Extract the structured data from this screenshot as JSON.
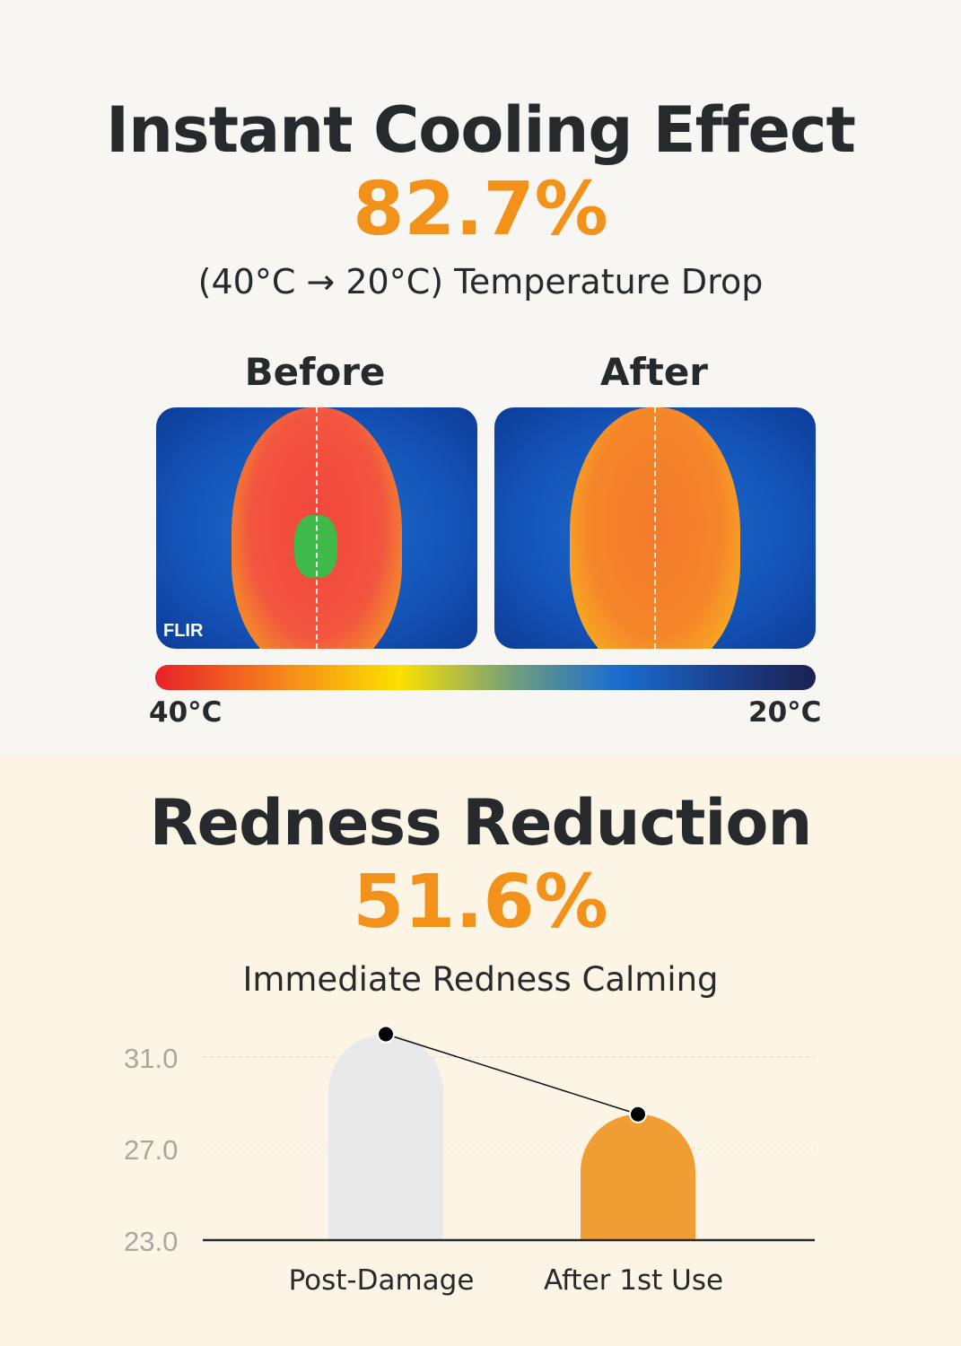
{
  "cooling": {
    "title": "Instant Cooling Effect",
    "stat": "82.7%",
    "subtitle": "(40°C → 20°C) Temperature Drop",
    "before_label": "Before",
    "after_label": "After",
    "brand_watermark": "FLIR",
    "scale_min_label": "40°C",
    "scale_max_label": "20°C"
  },
  "redness": {
    "title": "Redness Reduction",
    "stat": "51.6%",
    "subtitle": "Immediate Redness Calming"
  },
  "colors": {
    "accent": "#f3921b",
    "bar_before": "#e9e9e9",
    "bar_after": "#f09d33"
  },
  "chart_data": {
    "type": "bar",
    "categories": [
      "Post-Damage",
      "After 1st Use"
    ],
    "values": [
      32.0,
      28.5
    ],
    "yticks": [
      "31.0",
      "27.0",
      "23.0"
    ],
    "ylim": [
      23,
      32
    ],
    "grid": true,
    "connecting_line": true
  }
}
